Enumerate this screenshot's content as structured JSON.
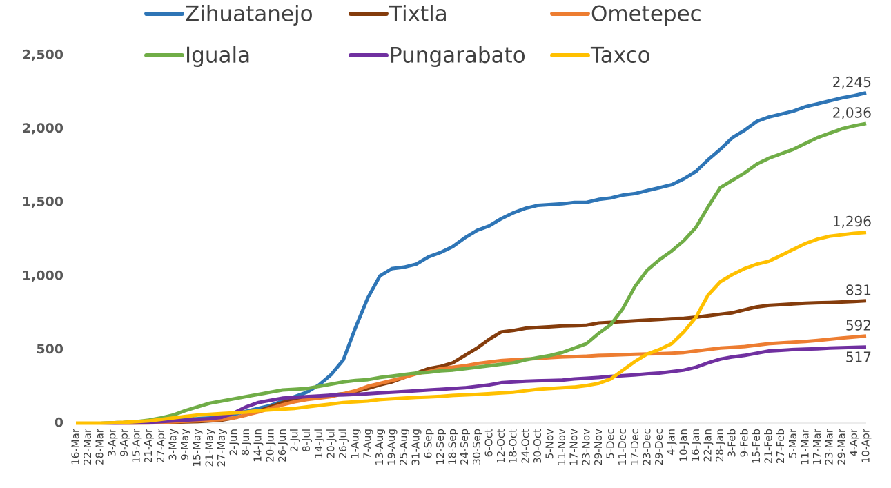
{
  "chart_data": {
    "type": "line",
    "legend": "top",
    "categories": [
      "16-Mar",
      "22-Mar",
      "28-Mar",
      "3-Apr",
      "9-Apr",
      "15-Apr",
      "21-Apr",
      "27-Apr",
      "3-May",
      "9-May",
      "15-May",
      "21-May",
      "27-May",
      "2-Jun",
      "8-Jun",
      "14-Jun",
      "20-Jun",
      "26-Jun",
      "2-Jul",
      "8-Jul",
      "14-Jul",
      "20-Jul",
      "26-Jul",
      "1-Aug",
      "7-Aug",
      "13-Aug",
      "19-Aug",
      "25-Aug",
      "31-Aug",
      "6-Sep",
      "12-Sep",
      "18-Sep",
      "24-Sep",
      "30-Sep",
      "6-Oct",
      "12-Oct",
      "18-Oct",
      "24-Oct",
      "30-Oct",
      "5-Nov",
      "11-Nov",
      "17-Nov",
      "23-Nov",
      "29-Nov",
      "5-Dec",
      "11-Dec",
      "17-Dec",
      "23-Dec",
      "29-Dec",
      "4-Jan",
      "10-Jan",
      "16-Jan",
      "22-Jan",
      "28-Jan",
      "3-Feb",
      "9-Feb",
      "15-Feb",
      "21-Feb",
      "27-Feb",
      "5-Mar",
      "11-Mar",
      "17-Mar",
      "23-Mar",
      "29-Mar",
      "4-Apr",
      "10-Apr"
    ],
    "ylim": [
      0,
      2500
    ],
    "yticks": [
      0,
      500,
      {
        "value": 1000,
        "label": "1,000"
      },
      {
        "value": 1500,
        "label": "1,500"
      },
      {
        "value": 2000,
        "label": "2,000"
      },
      {
        "value": 2500,
        "label": "2,500"
      }
    ],
    "series": [
      {
        "name": "Zihuatanejo",
        "color": "#2e75b6",
        "values": [
          0,
          0,
          0,
          2,
          5,
          8,
          12,
          15,
          20,
          25,
          30,
          35,
          45,
          60,
          80,
          100,
          120,
          150,
          180,
          210,
          260,
          330,
          430,
          650,
          850,
          1000,
          1050,
          1060,
          1080,
          1130,
          1160,
          1200,
          1260,
          1310,
          1340,
          1390,
          1430,
          1460,
          1480,
          1485,
          1490,
          1500,
          1500,
          1520,
          1530,
          1550,
          1560,
          1580,
          1600,
          1620,
          1660,
          1710,
          1790,
          1860,
          1940,
          1990,
          2050,
          2080,
          2100,
          2120,
          2150,
          2170,
          2190,
          2210,
          2225,
          2245
        ],
        "value_labels": [
          null,
          null,
          null,
          null,
          null,
          null,
          null,
          null,
          null,
          null,
          null,
          null,
          null,
          null,
          null,
          null,
          null,
          null,
          null,
          null,
          null,
          null,
          null,
          null,
          null,
          null,
          null,
          null,
          null,
          null,
          null,
          null,
          null,
          null,
          null,
          null,
          null,
          null,
          null,
          null,
          null,
          null,
          null,
          null,
          null,
          null,
          null,
          null,
          null,
          null,
          null,
          null,
          null,
          null,
          null,
          null,
          null,
          null,
          null,
          null,
          null,
          null,
          null,
          null,
          null,
          "2,245"
        ]
      },
      {
        "name": "Tixtla",
        "color": "#843c0c",
        "values": [
          0,
          0,
          0,
          0,
          0,
          1,
          2,
          3,
          5,
          8,
          10,
          15,
          20,
          35,
          55,
          80,
          110,
          140,
          160,
          170,
          180,
          190,
          200,
          215,
          235,
          260,
          280,
          310,
          340,
          370,
          385,
          410,
          460,
          510,
          570,
          620,
          630,
          645,
          650,
          655,
          660,
          662,
          665,
          680,
          685,
          690,
          695,
          700,
          705,
          710,
          712,
          720,
          730,
          740,
          750,
          770,
          790,
          800,
          805,
          810,
          815,
          818,
          820,
          823,
          827,
          831
        ],
        "value_labels": [
          null,
          null,
          null,
          null,
          null,
          null,
          null,
          null,
          null,
          null,
          null,
          null,
          null,
          null,
          null,
          null,
          null,
          null,
          null,
          null,
          null,
          null,
          null,
          null,
          null,
          null,
          null,
          null,
          null,
          null,
          null,
          null,
          null,
          null,
          null,
          null,
          null,
          null,
          null,
          null,
          null,
          null,
          null,
          null,
          null,
          null,
          null,
          null,
          null,
          null,
          null,
          null,
          null,
          null,
          null,
          null,
          null,
          null,
          null,
          null,
          null,
          null,
          null,
          null,
          null,
          "831"
        ]
      },
      {
        "name": "Ometepec",
        "color": "#ed7d31",
        "values": [
          0,
          0,
          0,
          0,
          0,
          1,
          2,
          5,
          8,
          12,
          15,
          20,
          25,
          35,
          55,
          75,
          100,
          125,
          145,
          160,
          170,
          180,
          200,
          220,
          250,
          270,
          290,
          310,
          335,
          350,
          370,
          380,
          390,
          405,
          415,
          425,
          430,
          435,
          440,
          445,
          450,
          452,
          455,
          460,
          462,
          465,
          468,
          470,
          472,
          475,
          480,
          490,
          500,
          510,
          515,
          520,
          530,
          540,
          545,
          550,
          555,
          562,
          570,
          578,
          585,
          592
        ],
        "value_labels": [
          null,
          null,
          null,
          null,
          null,
          null,
          null,
          null,
          null,
          null,
          null,
          null,
          null,
          null,
          null,
          null,
          null,
          null,
          null,
          null,
          null,
          null,
          null,
          null,
          null,
          null,
          null,
          null,
          null,
          null,
          null,
          null,
          null,
          null,
          null,
          null,
          null,
          null,
          null,
          null,
          null,
          null,
          null,
          null,
          null,
          null,
          null,
          null,
          null,
          null,
          null,
          null,
          null,
          null,
          null,
          null,
          null,
          null,
          null,
          null,
          null,
          null,
          null,
          null,
          null,
          "592"
        ]
      },
      {
        "name": "Iguala",
        "color": "#70ad47",
        "values": [
          0,
          0,
          0,
          2,
          5,
          10,
          20,
          35,
          55,
          85,
          110,
          135,
          150,
          165,
          180,
          195,
          210,
          225,
          230,
          235,
          250,
          265,
          280,
          290,
          295,
          310,
          320,
          330,
          340,
          345,
          355,
          360,
          370,
          380,
          390,
          400,
          410,
          430,
          445,
          460,
          480,
          510,
          540,
          610,
          670,
          780,
          930,
          1040,
          1110,
          1170,
          1240,
          1330,
          1470,
          1600,
          1650,
          1700,
          1760,
          1800,
          1830,
          1860,
          1900,
          1940,
          1970,
          2000,
          2020,
          2036
        ],
        "value_labels": [
          null,
          null,
          null,
          null,
          null,
          null,
          null,
          null,
          null,
          null,
          null,
          null,
          null,
          null,
          null,
          null,
          null,
          null,
          null,
          null,
          null,
          null,
          null,
          null,
          null,
          null,
          null,
          null,
          null,
          null,
          null,
          null,
          null,
          null,
          null,
          null,
          null,
          null,
          null,
          null,
          null,
          null,
          null,
          null,
          null,
          null,
          null,
          null,
          null,
          null,
          null,
          null,
          null,
          null,
          null,
          null,
          null,
          null,
          null,
          null,
          null,
          null,
          null,
          null,
          null,
          "2,036"
        ]
      },
      {
        "name": "Pungarabato",
        "color": "#7030a0",
        "values": [
          0,
          0,
          0,
          0,
          1,
          2,
          5,
          10,
          15,
          20,
          25,
          30,
          40,
          70,
          110,
          140,
          155,
          170,
          175,
          180,
          185,
          190,
          192,
          195,
          200,
          205,
          210,
          215,
          220,
          225,
          230,
          235,
          240,
          250,
          260,
          275,
          280,
          285,
          288,
          290,
          292,
          300,
          305,
          310,
          318,
          322,
          328,
          335,
          340,
          350,
          360,
          380,
          410,
          435,
          450,
          460,
          475,
          490,
          495,
          500,
          503,
          505,
          510,
          512,
          515,
          517
        ],
        "value_labels": [
          null,
          null,
          null,
          null,
          null,
          null,
          null,
          null,
          null,
          null,
          null,
          null,
          null,
          null,
          null,
          null,
          null,
          null,
          null,
          null,
          null,
          null,
          null,
          null,
          null,
          null,
          null,
          null,
          null,
          null,
          null,
          null,
          null,
          null,
          null,
          null,
          null,
          null,
          null,
          null,
          null,
          null,
          null,
          null,
          null,
          null,
          null,
          null,
          null,
          null,
          null,
          null,
          null,
          null,
          null,
          null,
          null,
          null,
          null,
          null,
          null,
          null,
          null,
          null,
          null,
          "517"
        ]
      },
      {
        "name": "Taxco",
        "color": "#ffc000",
        "values": [
          0,
          0,
          0,
          2,
          5,
          10,
          15,
          25,
          35,
          45,
          55,
          60,
          65,
          70,
          75,
          85,
          90,
          95,
          100,
          110,
          120,
          130,
          140,
          145,
          150,
          160,
          165,
          170,
          175,
          178,
          182,
          188,
          192,
          195,
          200,
          205,
          210,
          220,
          230,
          235,
          240,
          245,
          255,
          270,
          300,
          360,
          420,
          470,
          500,
          540,
          620,
          720,
          870,
          960,
          1010,
          1050,
          1080,
          1100,
          1140,
          1180,
          1220,
          1250,
          1270,
          1280,
          1290,
          1296
        ],
        "value_labels": [
          null,
          null,
          null,
          null,
          null,
          null,
          null,
          null,
          null,
          null,
          null,
          null,
          null,
          null,
          null,
          null,
          null,
          null,
          null,
          null,
          null,
          null,
          null,
          null,
          null,
          null,
          null,
          null,
          null,
          null,
          null,
          null,
          null,
          null,
          null,
          null,
          null,
          null,
          null,
          null,
          null,
          null,
          null,
          null,
          null,
          null,
          null,
          null,
          null,
          null,
          null,
          null,
          null,
          null,
          null,
          null,
          null,
          null,
          null,
          null,
          null,
          null,
          null,
          null,
          null,
          "1,296"
        ]
      }
    ]
  }
}
